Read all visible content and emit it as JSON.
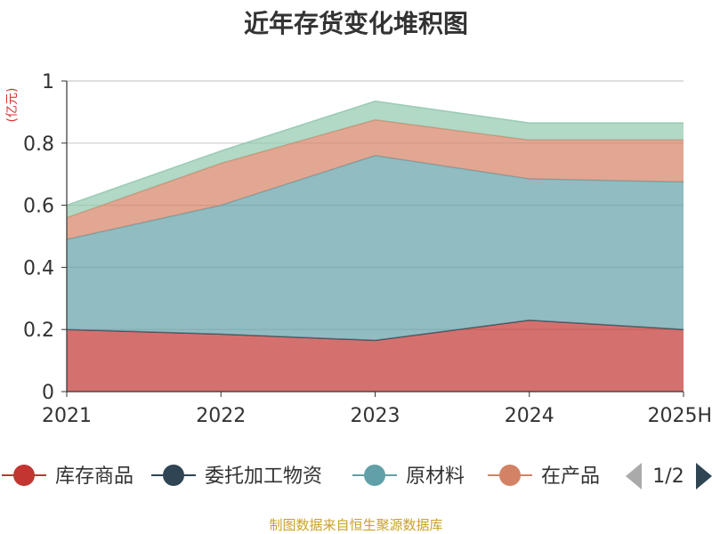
{
  "chart_data": {
    "type": "area",
    "stacked": true,
    "title": "近年存货变化堆积图",
    "ylabel": "(亿元)",
    "xlabel": "",
    "categories": [
      "2021",
      "2022",
      "2023",
      "2024",
      "2025H"
    ],
    "ylim": [
      0,
      1
    ],
    "yticks": [
      "0",
      "0.2",
      "0.4",
      "0.6",
      "0.8",
      "1"
    ],
    "grid": true,
    "series": [
      {
        "name": "库存商品",
        "values": [
          0.2,
          0.185,
          0.165,
          0.23,
          0.2
        ],
        "color": "#c23531"
      },
      {
        "name": "委托加工物资",
        "values": [
          0,
          0,
          0,
          0,
          0
        ],
        "color": "#2f4554"
      },
      {
        "name": "原材料",
        "values": [
          0.29,
          0.415,
          0.595,
          0.455,
          0.475
        ],
        "color": "#61a0a8"
      },
      {
        "name": "在产品",
        "values": [
          0.07,
          0.135,
          0.115,
          0.125,
          0.135
        ],
        "color": "#d48265"
      },
      {
        "name": "",
        "values": [
          0.04,
          0.04,
          0.06,
          0.055,
          0.055
        ],
        "color": "#91c7ae"
      }
    ],
    "legend": {
      "position": "bottom",
      "visible_items": [
        "库存商品",
        "委托加工物资",
        "原材料",
        "在产品"
      ],
      "page": "1/2"
    }
  },
  "source_note": "制图数据来自恒生聚源数据库",
  "icons": {
    "prev": "triangle-left-icon",
    "next": "triangle-right-icon"
  }
}
